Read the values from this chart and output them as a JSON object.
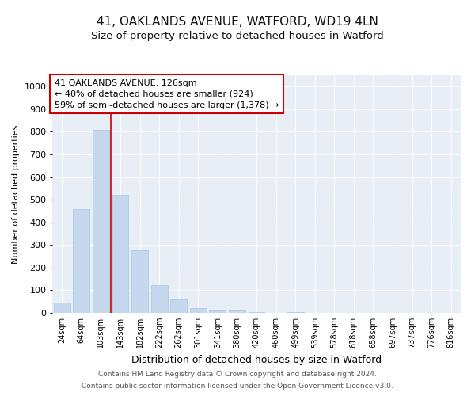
{
  "title_line1": "41, OAKLANDS AVENUE, WATFORD, WD19 4LN",
  "title_line2": "Size of property relative to detached houses in Watford",
  "xlabel": "Distribution of detached houses by size in Watford",
  "ylabel": "Number of detached properties",
  "categories": [
    "24sqm",
    "64sqm",
    "103sqm",
    "143sqm",
    "182sqm",
    "222sqm",
    "262sqm",
    "301sqm",
    "341sqm",
    "380sqm",
    "420sqm",
    "460sqm",
    "499sqm",
    "539sqm",
    "578sqm",
    "618sqm",
    "658sqm",
    "697sqm",
    "737sqm",
    "776sqm",
    "816sqm"
  ],
  "bar_heights": [
    47,
    460,
    810,
    520,
    275,
    122,
    58,
    22,
    12,
    12,
    5,
    0,
    5,
    0,
    0,
    0,
    0,
    0,
    0,
    0,
    0
  ],
  "bar_color": "#c5d8ed",
  "bar_edge_color": "#a8c4df",
  "background_color": "#ffffff",
  "plot_bg_color": "#e8eef5",
  "grid_color": "#ffffff",
  "annotation_box_edgecolor": "#cc0000",
  "annotation_line_color": "#cc0000",
  "annotation_text_line1": "41 OAKLANDS AVENUE: 126sqm",
  "annotation_text_line2": "← 40% of detached houses are smaller (924)",
  "annotation_text_line3": "59% of semi-detached houses are larger (1,378) →",
  "red_line_x": 2.5,
  "ylim": [
    0,
    1050
  ],
  "yticks": [
    0,
    100,
    200,
    300,
    400,
    500,
    600,
    700,
    800,
    900,
    1000
  ],
  "footer_line1": "Contains HM Land Registry data © Crown copyright and database right 2024.",
  "footer_line2": "Contains public sector information licensed under the Open Government Licence v3.0.",
  "title_fontsize": 11,
  "subtitle_fontsize": 9.5,
  "ylabel_fontsize": 8,
  "xlabel_fontsize": 9,
  "tick_fontsize": 7,
  "annotation_fontsize": 8,
  "footer_fontsize": 6.5
}
